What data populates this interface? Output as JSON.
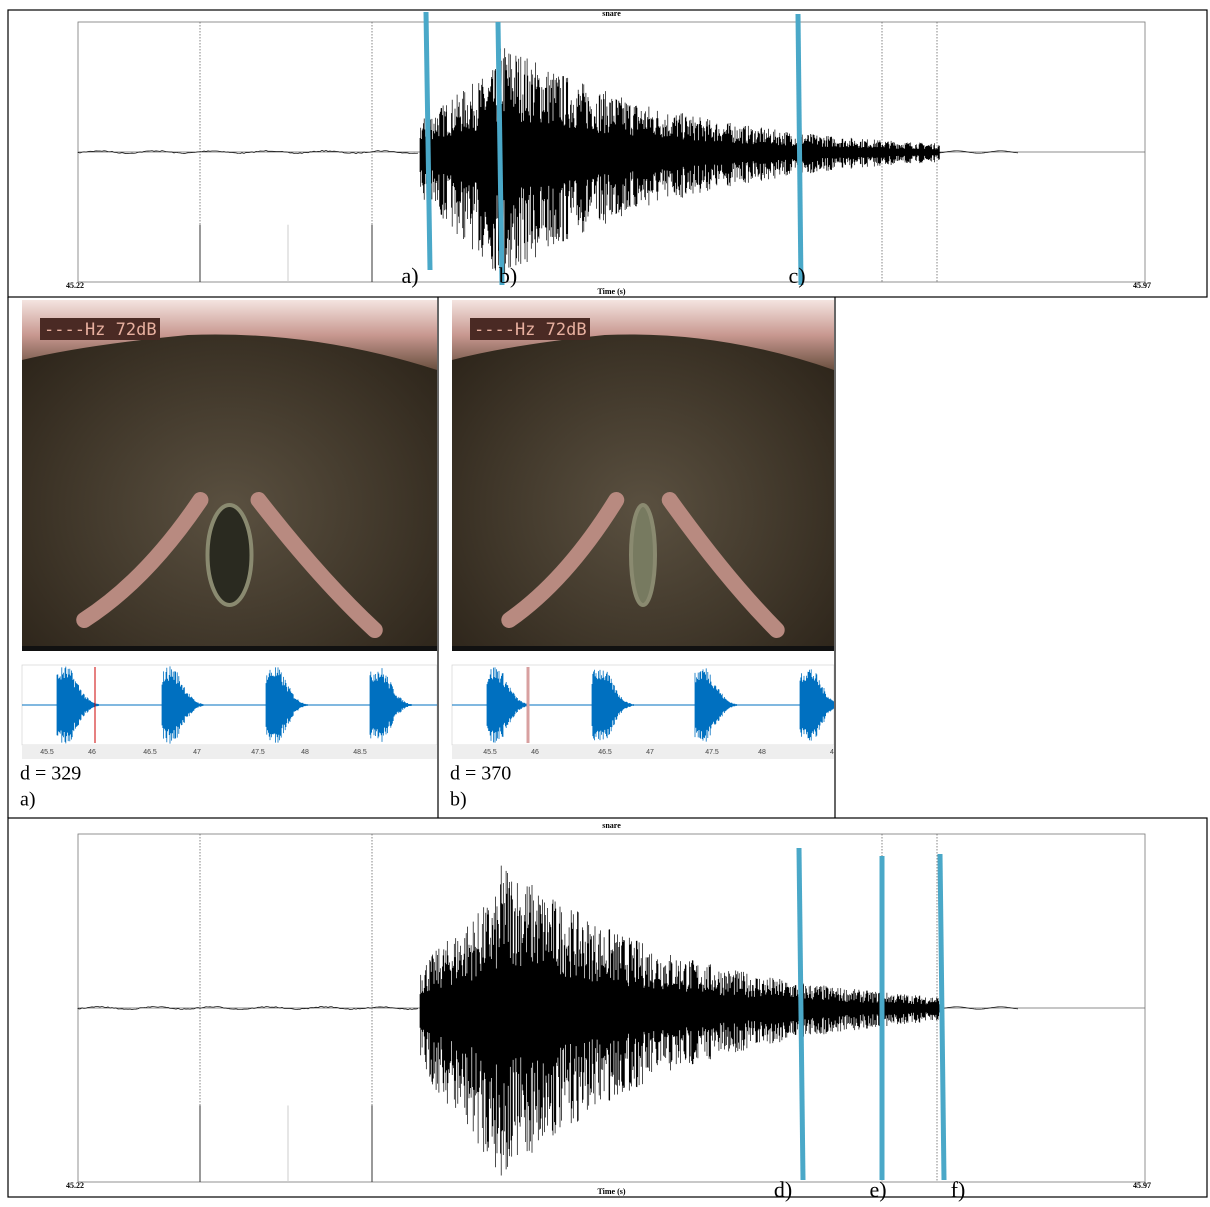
{
  "top_panel": {
    "title": "snare",
    "xlabel": "Time (s)",
    "x_start": "45.22",
    "x_end": "45.97",
    "markers": [
      "a)",
      "b)",
      "c)"
    ]
  },
  "frames": [
    {
      "overlay": "----Hz  72dB",
      "ticks": [
        "45.5",
        "46",
        "46.5",
        "47",
        "47.5",
        "48",
        "48.5"
      ],
      "caption": "d = 329",
      "label": "a)"
    },
    {
      "overlay": "----Hz  72dB",
      "ticks": [
        "45.5",
        "46",
        "46.5",
        "47",
        "47.5",
        "48",
        "4"
      ],
      "caption": "d = 370",
      "label": "b)"
    }
  ],
  "bottom_panel": {
    "title": "snare",
    "xlabel": "Time (s)",
    "x_start": "45.22",
    "x_end": "45.97",
    "markers": [
      "d)",
      "e)",
      "f)"
    ]
  }
}
